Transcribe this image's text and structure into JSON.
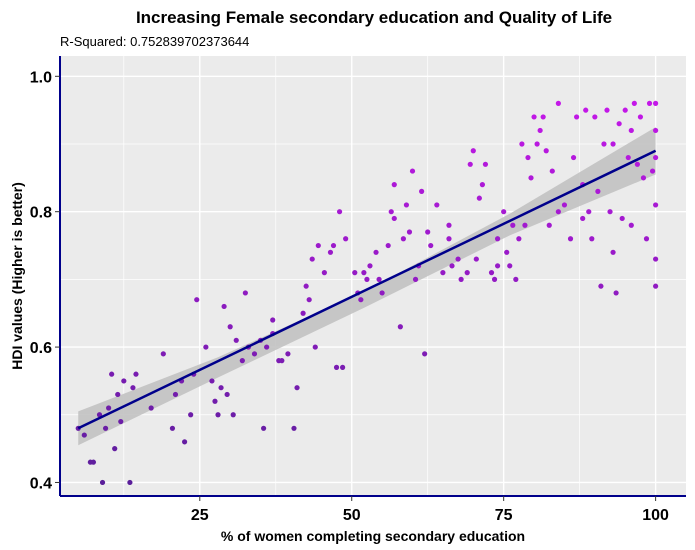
{
  "chart_data": {
    "type": "scatter",
    "title": "Increasing Female secondary education and Quality of Life",
    "subtitle": "R-Squared:  0.752839702373644",
    "xlabel": "% of women completing secondary education",
    "ylabel": "HDI values (Higher is better)",
    "xlim": [
      2,
      105
    ],
    "ylim": [
      0.38,
      1.03
    ],
    "xticks": [
      25,
      50,
      75,
      100
    ],
    "yticks": [
      0.4,
      0.6,
      0.8,
      1.0
    ],
    "ytick_labels": [
      "0.4",
      "0.6",
      "0.8",
      "1.0"
    ],
    "grid": true,
    "legend": "none",
    "trend_line": {
      "x": [
        5,
        100
      ],
      "y": [
        0.48,
        0.89
      ]
    },
    "confidence_band": {
      "x": [
        5,
        28,
        52,
        76,
        100
      ],
      "lower": [
        0.455,
        0.555,
        0.658,
        0.765,
        0.855
      ],
      "upper": [
        0.505,
        0.585,
        0.682,
        0.797,
        0.925
      ]
    },
    "colors": {
      "panel": "#ebebeb",
      "grid": "#ffffff",
      "trend": "#00008b",
      "band": "#c2c2c2",
      "axis": "#00008b",
      "point_low": "#5a1e9a",
      "point_high": "#c418e8"
    },
    "points": [
      [
        5.0,
        0.48
      ],
      [
        6.0,
        0.47
      ],
      [
        7.0,
        0.43
      ],
      [
        7.5,
        0.43
      ],
      [
        8.5,
        0.5
      ],
      [
        9.0,
        0.4
      ],
      [
        9.5,
        0.48
      ],
      [
        10.0,
        0.51
      ],
      [
        10.5,
        0.56
      ],
      [
        11.0,
        0.45
      ],
      [
        11.5,
        0.53
      ],
      [
        12.0,
        0.49
      ],
      [
        12.5,
        0.55
      ],
      [
        13.5,
        0.4
      ],
      [
        14.0,
        0.54
      ],
      [
        14.5,
        0.56
      ],
      [
        17.0,
        0.51
      ],
      [
        19.0,
        0.59
      ],
      [
        20.5,
        0.48
      ],
      [
        21.0,
        0.53
      ],
      [
        22.0,
        0.55
      ],
      [
        22.5,
        0.46
      ],
      [
        23.5,
        0.5
      ],
      [
        24.0,
        0.56
      ],
      [
        24.5,
        0.67
      ],
      [
        27.0,
        0.55
      ],
      [
        27.5,
        0.52
      ],
      [
        28.0,
        0.5
      ],
      [
        28.5,
        0.54
      ],
      [
        29.0,
        0.66
      ],
      [
        29.5,
        0.53
      ],
      [
        30.0,
        0.63
      ],
      [
        30.5,
        0.5
      ],
      [
        31.0,
        0.61
      ],
      [
        32.0,
        0.58
      ],
      [
        32.5,
        0.68
      ],
      [
        34.0,
        0.59
      ],
      [
        35.0,
        0.61
      ],
      [
        35.5,
        0.48
      ],
      [
        36.0,
        0.6
      ],
      [
        37.0,
        0.62
      ],
      [
        38.0,
        0.58
      ],
      [
        38.5,
        0.58
      ],
      [
        39.5,
        0.59
      ],
      [
        40.5,
        0.48
      ],
      [
        41.0,
        0.54
      ],
      [
        42.0,
        0.65
      ],
      [
        42.5,
        0.69
      ],
      [
        43.0,
        0.67
      ],
      [
        43.5,
        0.73
      ],
      [
        44.5,
        0.75
      ],
      [
        45.5,
        0.71
      ],
      [
        46.5,
        0.74
      ],
      [
        47.0,
        0.75
      ],
      [
        47.5,
        0.57
      ],
      [
        48.0,
        0.8
      ],
      [
        48.5,
        0.57
      ],
      [
        50.5,
        0.71
      ],
      [
        51.0,
        0.68
      ],
      [
        51.5,
        0.67
      ],
      [
        52.0,
        0.71
      ],
      [
        52.5,
        0.7
      ],
      [
        53.0,
        0.72
      ],
      [
        54.0,
        0.74
      ],
      [
        54.5,
        0.7
      ],
      [
        55.0,
        0.68
      ],
      [
        56.0,
        0.75
      ],
      [
        56.5,
        0.8
      ],
      [
        57.0,
        0.84
      ],
      [
        58.0,
        0.63
      ],
      [
        58.5,
        0.76
      ],
      [
        59.0,
        0.81
      ],
      [
        59.5,
        0.77
      ],
      [
        60.0,
        0.86
      ],
      [
        60.5,
        0.7
      ],
      [
        61.0,
        0.72
      ],
      [
        61.5,
        0.83
      ],
      [
        62.0,
        0.59
      ],
      [
        62.5,
        0.77
      ],
      [
        63.0,
        0.75
      ],
      [
        64.0,
        0.81
      ],
      [
        65.0,
        0.71
      ],
      [
        66.0,
        0.76
      ],
      [
        66.5,
        0.72
      ],
      [
        67.5,
        0.73
      ],
      [
        68.0,
        0.7
      ],
      [
        69.0,
        0.71
      ],
      [
        69.5,
        0.87
      ],
      [
        70.0,
        0.89
      ],
      [
        70.5,
        0.73
      ],
      [
        71.0,
        0.82
      ],
      [
        71.5,
        0.84
      ],
      [
        72.0,
        0.87
      ],
      [
        73.0,
        0.71
      ],
      [
        73.5,
        0.7
      ],
      [
        74.0,
        0.72
      ],
      [
        75.0,
        0.8
      ],
      [
        75.5,
        0.74
      ],
      [
        76.0,
        0.72
      ],
      [
        76.5,
        0.78
      ],
      [
        77.0,
        0.7
      ],
      [
        77.5,
        0.76
      ],
      [
        78.0,
        0.9
      ],
      [
        78.5,
        0.78
      ],
      [
        79.0,
        0.88
      ],
      [
        79.5,
        0.85
      ],
      [
        80.0,
        0.94
      ],
      [
        80.5,
        0.9
      ],
      [
        81.0,
        0.92
      ],
      [
        81.5,
        0.94
      ],
      [
        82.0,
        0.89
      ],
      [
        82.5,
        0.78
      ],
      [
        83.0,
        0.86
      ],
      [
        84.0,
        0.8
      ],
      [
        85.0,
        0.81
      ],
      [
        86.0,
        0.76
      ],
      [
        86.5,
        0.88
      ],
      [
        87.0,
        0.94
      ],
      [
        88.0,
        0.79
      ],
      [
        88.5,
        0.95
      ],
      [
        89.0,
        0.8
      ],
      [
        89.5,
        0.76
      ],
      [
        90.0,
        0.94
      ],
      [
        90.5,
        0.83
      ],
      [
        91.0,
        0.69
      ],
      [
        91.5,
        0.9
      ],
      [
        92.0,
        0.95
      ],
      [
        92.5,
        0.8
      ],
      [
        93.0,
        0.74
      ],
      [
        93.5,
        0.68
      ],
      [
        94.0,
        0.93
      ],
      [
        94.5,
        0.79
      ],
      [
        95.0,
        0.95
      ],
      [
        95.5,
        0.88
      ],
      [
        96.0,
        0.92
      ],
      [
        96.5,
        0.96
      ],
      [
        97.0,
        0.87
      ],
      [
        97.5,
        0.94
      ],
      [
        98.0,
        0.85
      ],
      [
        98.5,
        0.76
      ],
      [
        99.0,
        0.96
      ],
      [
        99.5,
        0.86
      ],
      [
        100.0,
        0.96
      ],
      [
        100.0,
        0.92
      ],
      [
        100.0,
        0.88
      ],
      [
        100.0,
        0.81
      ],
      [
        100.0,
        0.73
      ],
      [
        100.0,
        0.69
      ],
      [
        96.0,
        0.78
      ],
      [
        93.0,
        0.9
      ],
      [
        88.0,
        0.84
      ],
      [
        84.0,
        0.96
      ],
      [
        74.0,
        0.76
      ],
      [
        66.0,
        0.78
      ],
      [
        57.0,
        0.79
      ],
      [
        49.0,
        0.76
      ],
      [
        44.0,
        0.6
      ],
      [
        37.0,
        0.64
      ],
      [
        33.0,
        0.6
      ],
      [
        26.0,
        0.6
      ]
    ]
  }
}
